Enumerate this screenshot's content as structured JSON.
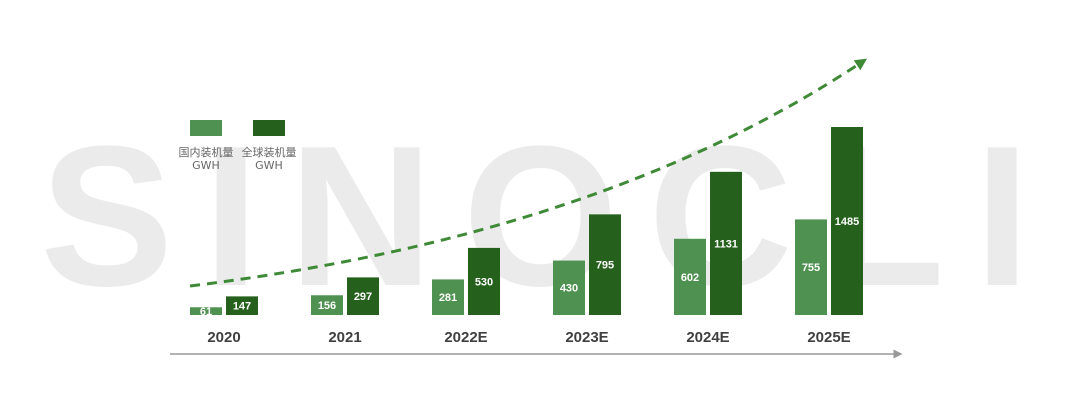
{
  "chart_data": {
    "type": "bar",
    "watermark": "SINOCLI",
    "categories": [
      "2020",
      "2021",
      "2022E",
      "2023E",
      "2024E",
      "2025E"
    ],
    "unit": "GWH",
    "series": [
      {
        "name": "国内装机量",
        "color": "#4f9150",
        "values": [
          61,
          156,
          281,
          430,
          602,
          755
        ]
      },
      {
        "name": "全球装机量",
        "color": "#25611c",
        "values": [
          147,
          297,
          530,
          795,
          1131,
          1485
        ]
      }
    ]
  }
}
